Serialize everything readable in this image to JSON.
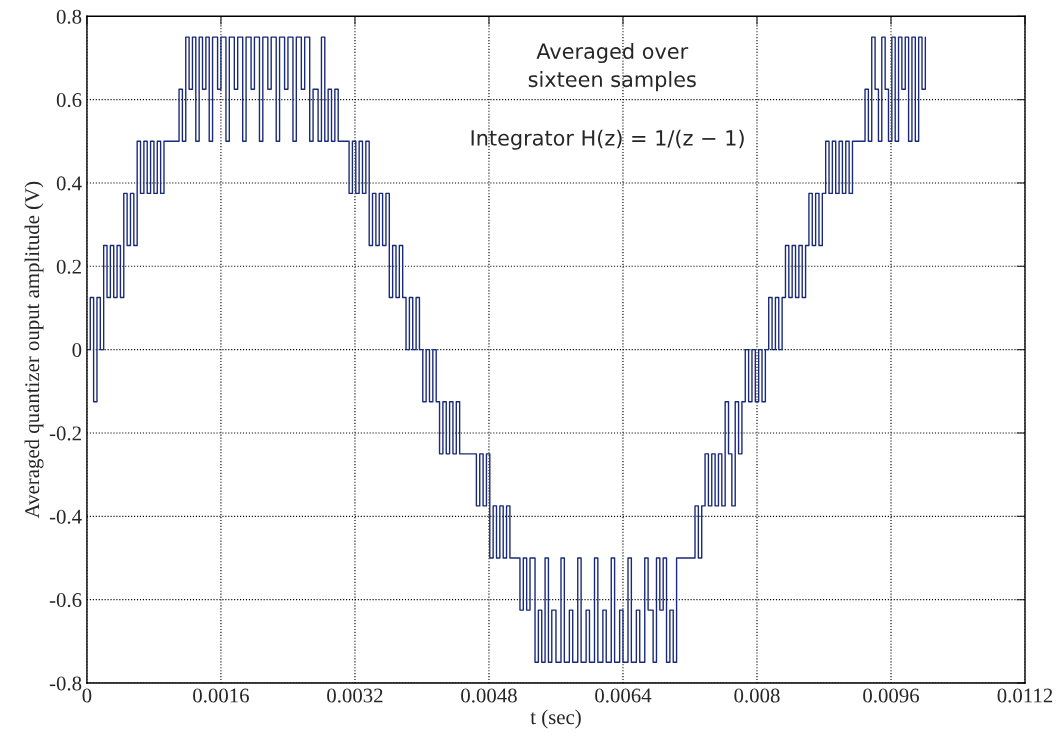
{
  "chart_data": {
    "type": "step",
    "xlabel": "t (sec)",
    "ylabel": "Averaged quantizer ouput amplitude (V)",
    "annotations": [
      "Averaged over\nsixteen samples",
      "Integrator H(z) = 1/(z − 1)"
    ],
    "xlim": [
      0,
      0.0112
    ],
    "xticks": [
      0,
      0.0016,
      0.0032,
      0.0048,
      0.0064,
      0.008,
      0.0096,
      0.0112
    ],
    "ylim": [
      -0.8,
      0.8
    ],
    "yticks": [
      -0.8,
      -0.6,
      -0.4,
      -0.2,
      0,
      0.2,
      0.4,
      0.6,
      0.8
    ],
    "grid": true,
    "line_style": "solid",
    "series": [
      {
        "color": "#1a2a7a",
        "x": [
          0,
          4e-05,
          8e-05,
          0.00012,
          0.00016,
          0.0002,
          0.00024,
          0.00028,
          0.00032,
          0.00036,
          0.0004,
          0.00044,
          0.00048,
          0.00052,
          0.00056,
          0.0006,
          0.00064,
          0.00068,
          0.00072,
          0.00076,
          0.0008,
          0.00084,
          0.00088,
          0.00092,
          0.0011,
          0.00114,
          0.00118,
          0.00122,
          0.00126,
          0.0013,
          0.00134,
          0.00138,
          0.00142,
          0.00146,
          0.0015,
          0.00156,
          0.0016,
          0.00166,
          0.0017,
          0.00176,
          0.0018,
          0.00186,
          0.0019,
          0.00196,
          0.002,
          0.00206,
          0.0021,
          0.00216,
          0.0022,
          0.00226,
          0.0023,
          0.00236,
          0.0024,
          0.00246,
          0.0025,
          0.00256,
          0.0026,
          0.00266,
          0.0027,
          0.00276,
          0.0028,
          0.00284,
          0.00288,
          0.00292,
          0.00296,
          0.003,
          0.00313,
          0.00317,
          0.00321,
          0.00325,
          0.00329,
          0.00333,
          0.00337,
          0.00341,
          0.00345,
          0.00349,
          0.00353,
          0.00357,
          0.00361,
          0.00365,
          0.00369,
          0.00373,
          0.00377,
          0.00381,
          0.00385,
          0.00389,
          0.00393,
          0.00397,
          0.00401,
          0.00405,
          0.00409,
          0.00413,
          0.00417,
          0.00421,
          0.00425,
          0.00429,
          0.00433,
          0.00437,
          0.00441,
          0.00445,
          0.00451,
          0.00465,
          0.00469,
          0.00473,
          0.00477,
          0.00481,
          0.00485,
          0.00489,
          0.00493,
          0.00497,
          0.00501,
          0.00505,
          0.00517,
          0.00521,
          0.00525,
          0.00529,
          0.00535,
          0.00539,
          0.00543,
          0.00547,
          0.00551,
          0.00555,
          0.0056,
          0.00566,
          0.0057,
          0.00576,
          0.0058,
          0.00586,
          0.0059,
          0.00596,
          0.006,
          0.00606,
          0.0061,
          0.00616,
          0.0062,
          0.00626,
          0.0063,
          0.00636,
          0.0064,
          0.00646,
          0.0065,
          0.00656,
          0.0066,
          0.00666,
          0.0067,
          0.00676,
          0.0068,
          0.00684,
          0.00688,
          0.00692,
          0.00696,
          0.007,
          0.00704,
          0.00726,
          0.0073,
          0.00734,
          0.00738,
          0.00742,
          0.00746,
          0.0075,
          0.00754,
          0.00758,
          0.00762,
          0.00766,
          0.0077,
          0.00774,
          0.00778,
          0.00782,
          0.00786,
          0.0079,
          0.00794,
          0.00798,
          0.00802,
          0.00806,
          0.0081,
          0.00814,
          0.00818,
          0.00822,
          0.00826,
          0.0083,
          0.00834,
          0.00838,
          0.00842,
          0.00846,
          0.0085,
          0.00854,
          0.00858,
          0.00862,
          0.00866,
          0.0087,
          0.00874,
          0.00878,
          0.00882,
          0.00886,
          0.0089,
          0.00894,
          0.00898,
          0.00902,
          0.00906,
          0.0091,
          0.00914,
          0.00929,
          0.00933,
          0.00937,
          0.00941,
          0.00945,
          0.00949,
          0.00953,
          0.00957,
          0.00961,
          0.00965,
          0.00969,
          0.00973,
          0.00977,
          0.00981,
          0.00985,
          0.00989,
          0.00993,
          0.00997,
          0.01001
        ],
        "values": [
          0,
          0.125,
          -0.125,
          0.125,
          0,
          0.25,
          0.125,
          0.25,
          0.125,
          0.25,
          0.125,
          0.375,
          0.25,
          0.375,
          0.25,
          0.5,
          0.375,
          0.5,
          0.375,
          0.5,
          0.375,
          0.5,
          0.375,
          0.5,
          0.625,
          0.5,
          0.75,
          0.625,
          0.75,
          0.5,
          0.75,
          0.625,
          0.75,
          0.5,
          0.75,
          0.625,
          0.75,
          0.5,
          0.75,
          0.625,
          0.75,
          0.5,
          0.75,
          0.625,
          0.75,
          0.5,
          0.75,
          0.625,
          0.75,
          0.5,
          0.75,
          0.625,
          0.75,
          0.5,
          0.75,
          0.625,
          0.75,
          0.5,
          0.625,
          0.5,
          0.75,
          0.5,
          0.625,
          0.5,
          0.625,
          0.5,
          0.375,
          0.5,
          0.375,
          0.5,
          0.375,
          0.5,
          0.25,
          0.375,
          0.25,
          0.375,
          0.25,
          0.375,
          0.125,
          0.25,
          0.125,
          0.25,
          0.125,
          0,
          0.125,
          0,
          0.125,
          0,
          -0.125,
          0,
          -0.125,
          0,
          -0.125,
          -0.25,
          -0.125,
          -0.25,
          -0.125,
          -0.25,
          -0.125,
          -0.25,
          -0.25,
          -0.375,
          -0.25,
          -0.375,
          -0.25,
          -0.5,
          -0.375,
          -0.5,
          -0.375,
          -0.5,
          -0.375,
          -0.5,
          -0.625,
          -0.5,
          -0.625,
          -0.5,
          -0.75,
          -0.625,
          -0.75,
          -0.5,
          -0.75,
          -0.625,
          -0.75,
          -0.5,
          -0.75,
          -0.625,
          -0.75,
          -0.5,
          -0.75,
          -0.625,
          -0.75,
          -0.5,
          -0.75,
          -0.625,
          -0.75,
          -0.5,
          -0.75,
          -0.625,
          -0.75,
          -0.5,
          -0.75,
          -0.625,
          -0.75,
          -0.5,
          -0.625,
          -0.75,
          -0.5,
          -0.625,
          -0.5,
          -0.75,
          -0.625,
          -0.75,
          -0.5,
          -0.375,
          -0.5,
          -0.375,
          -0.25,
          -0.375,
          -0.25,
          -0.375,
          -0.25,
          -0.375,
          -0.125,
          -0.25,
          -0.375,
          -0.125,
          -0.25,
          -0.125,
          0,
          -0.125,
          0,
          -0.125,
          0,
          -0.125,
          0,
          0.125,
          0,
          0.125,
          0,
          0.125,
          0.25,
          0.125,
          0.25,
          0.125,
          0.25,
          0.125,
          0.25,
          0.375,
          0.25,
          0.375,
          0.25,
          0.375,
          0.5,
          0.375,
          0.5,
          0.375,
          0.5,
          0.375,
          0.5,
          0.375,
          0.5,
          0.625,
          0.5,
          0.75,
          0.625,
          0.5,
          0.75,
          0.625,
          0.5,
          0.75,
          0.5,
          0.75,
          0.625,
          0.75,
          0.5,
          0.75,
          0.5,
          0.75,
          0.625,
          0.75
        ]
      }
    ]
  }
}
